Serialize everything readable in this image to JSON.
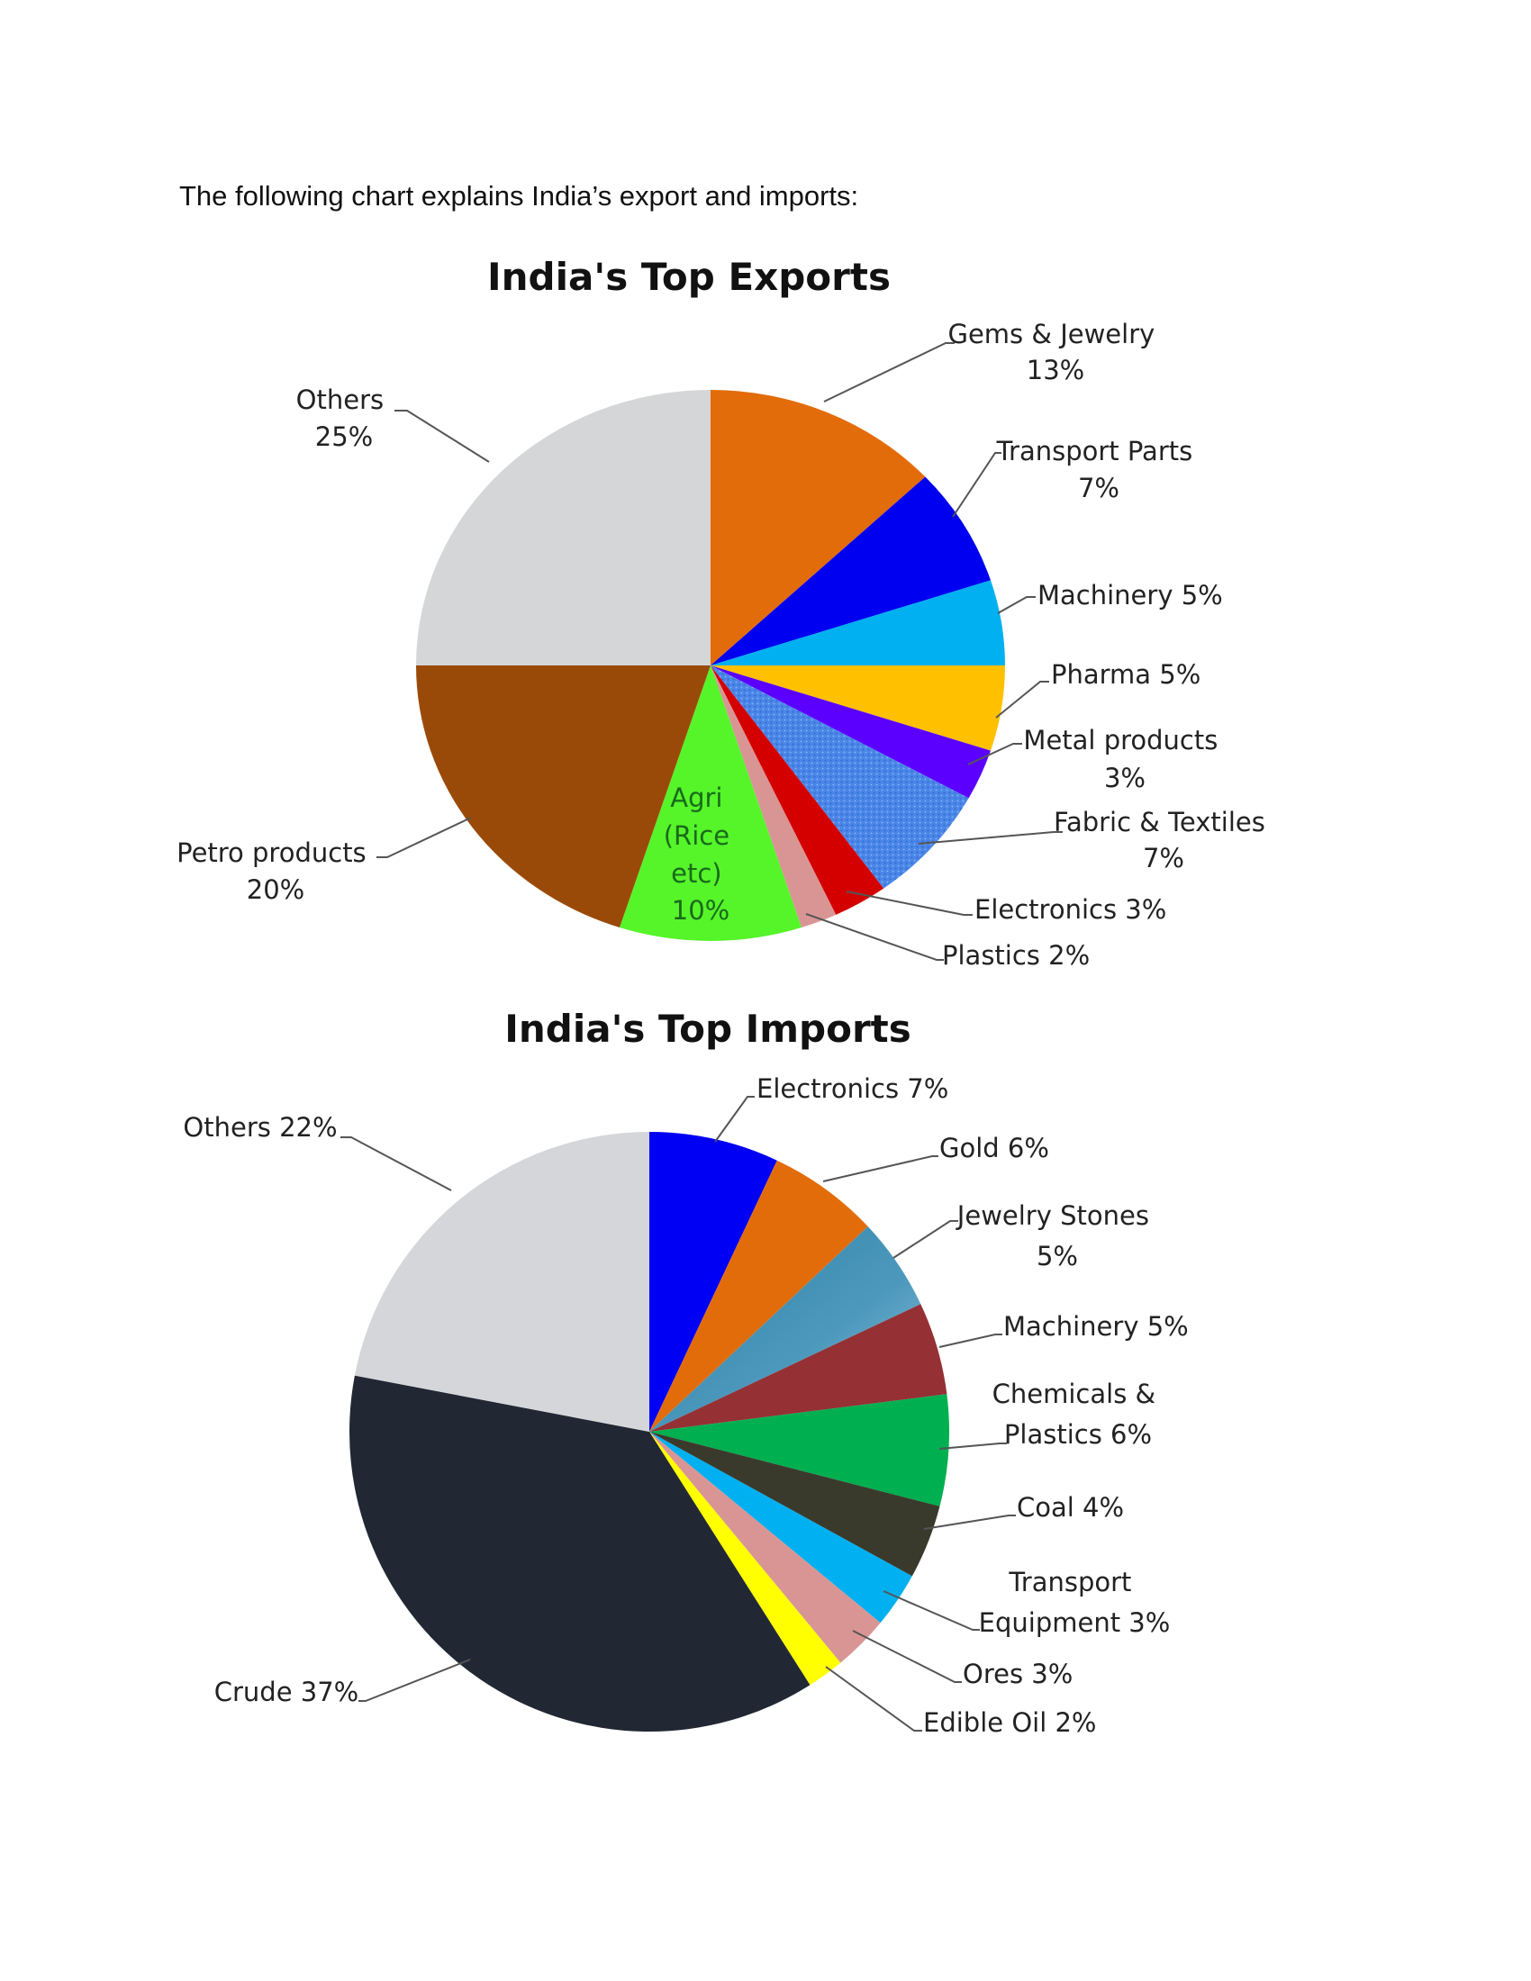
{
  "intro_text": "The following chart explains India’s export and imports:",
  "chart_data": [
    {
      "type": "pie",
      "title": "India's Top Exports",
      "categories": [
        "Gems & Jewelry",
        "Transport Parts",
        "Machinery",
        "Pharma",
        "Metal products",
        "Fabric & Textiles",
        "Electronics",
        "Plastics",
        "Agri (Rice etc)",
        "Petro products",
        "Others"
      ],
      "values": [
        13,
        7,
        5,
        5,
        3,
        7,
        3,
        2,
        10,
        20,
        25
      ],
      "unit": "%",
      "colors": [
        "#E36C0A",
        "#0000F0",
        "#00B0F0",
        "#FFC000",
        "#5B00FF",
        "#4A86E8",
        "#D40000",
        "#D99594",
        "#55F52A",
        "#9A4A08",
        "#D4D6D8"
      ],
      "labels": [
        {
          "l1": "Gems & Jewelry",
          "l2": "13%"
        },
        {
          "l1": "Transport Parts",
          "l2": "7%"
        },
        {
          "l1": "Machinery 5%",
          "l2": ""
        },
        {
          "l1": "Pharma 5%",
          "l2": ""
        },
        {
          "l1": "Metal products",
          "l2": "3%"
        },
        {
          "l1": "Fabric & Textiles",
          "l2": "7%"
        },
        {
          "l1": "Electronics 3%",
          "l2": ""
        },
        {
          "l1": "Plastics 2%",
          "l2": ""
        },
        {
          "l1": "Agri",
          "l2": "(Rice",
          "l3": "etc)",
          "l4": "10%"
        },
        {
          "l1": "Petro products",
          "l2": "20%"
        },
        {
          "l1": "Others",
          "l2": "25%"
        }
      ]
    },
    {
      "type": "pie",
      "title": "India's Top Imports",
      "categories": [
        "Electronics",
        "Gold",
        "Jewelry Stones",
        "Machinery",
        "Chemicals & Plastics",
        "Coal",
        "Transport Equipment",
        "Ores",
        "Edible Oil",
        "Crude",
        "Others"
      ],
      "values": [
        7,
        6,
        5,
        5,
        6,
        4,
        3,
        3,
        2,
        37,
        22
      ],
      "unit": "%",
      "colors": [
        "#0000F5",
        "#E36C0A",
        "#3F8FB0",
        "#953035",
        "#00B050",
        "#3A3A2C",
        "#00B0F0",
        "#D99594",
        "#FFFF00",
        "#212833",
        "#D4D6D9"
      ],
      "labels": [
        {
          "l1": "Electronics 7%",
          "l2": ""
        },
        {
          "l1": "Gold 6%",
          "l2": ""
        },
        {
          "l1": "Jewelry Stones",
          "l2": "5%"
        },
        {
          "l1": "Machinery 5%",
          "l2": ""
        },
        {
          "l1": "Chemicals &",
          "l2": "Plastics 6%"
        },
        {
          "l1": "Coal 4%",
          "l2": ""
        },
        {
          "l1": "Transport",
          "l2": "Equipment 3%"
        },
        {
          "l1": "Ores 3%",
          "l2": ""
        },
        {
          "l1": "Edible Oil 2%",
          "l2": ""
        },
        {
          "l1": "Crude 37%",
          "l2": ""
        },
        {
          "l1": "Others 22%",
          "l2": ""
        }
      ]
    }
  ]
}
